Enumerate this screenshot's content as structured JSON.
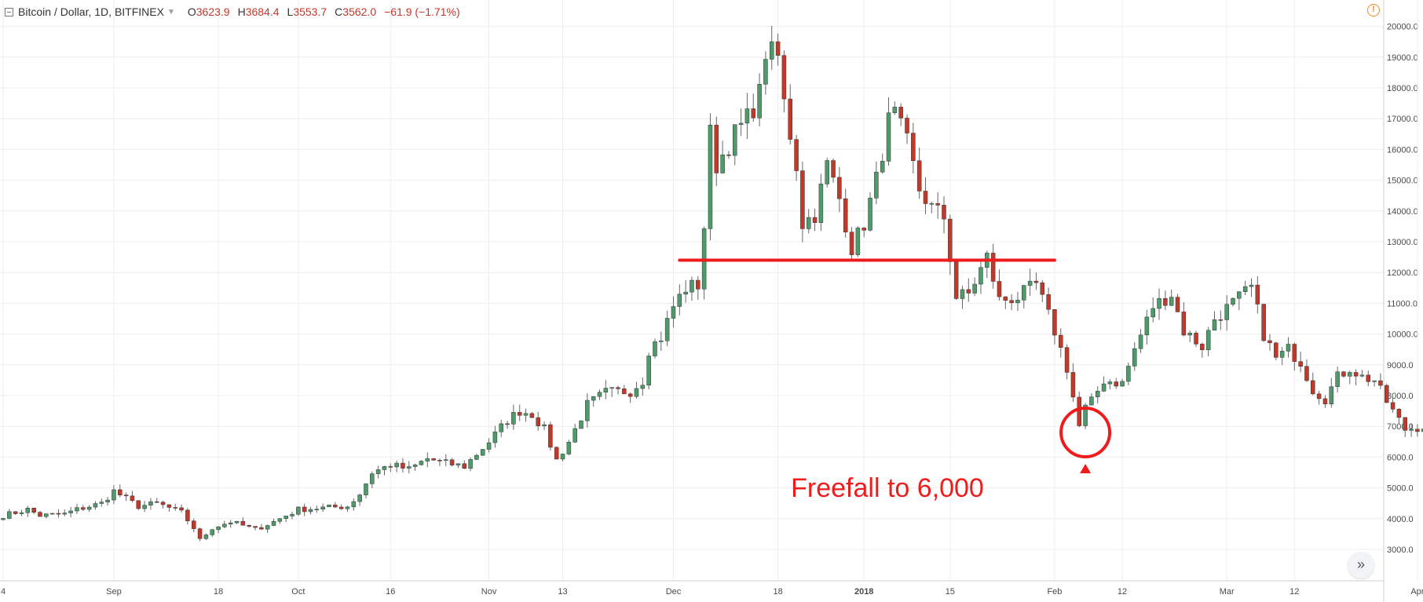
{
  "legend": {
    "symbol": "Bitcoin / Dollar, 1D, BITFINEX",
    "open_key": "O",
    "open": "3623.9",
    "high_key": "H",
    "high": "3684.4",
    "low_key": "L",
    "low": "3553.7",
    "close_key": "C",
    "close": "3562.0",
    "change": "−61.9 (−1.71%)"
  },
  "icons": {
    "alert": "alert-circle-icon",
    "scroll": "double-chevron-right-icon"
  },
  "colors": {
    "up": "#4f9a6b",
    "down": "#c0392b",
    "wick": "#666666",
    "annotation": "#ee1c1c",
    "grid": "#eeeeee",
    "axis_text": "#4a4a4a",
    "background": "#ffffff"
  },
  "annotation": {
    "text": "Freefall to 6,000",
    "support_level": 12400,
    "support_from": "2017-12-02",
    "support_to": "2018-02-01",
    "circled_date": "2018-02-06",
    "circled_price": 6800
  },
  "chart_data": {
    "type": "candlestick",
    "title": "Bitcoin / Dollar, 1D, BITFINEX",
    "y_ticks": [
      "3000.0",
      "4000.0",
      "5000.0",
      "6000.0",
      "7000.0",
      "8000.0",
      "9000.0",
      "10000.0",
      "11000.0",
      "12000.0",
      "13000.0",
      "14000.0",
      "15000.0",
      "16000.0",
      "17000.0",
      "18000.0",
      "19000.0",
      "20000.0"
    ],
    "x_ticks": [
      {
        "date": "2017-08-14",
        "label": "4"
      },
      {
        "date": "2017-09-01",
        "label": "Sep"
      },
      {
        "date": "2017-09-18",
        "label": "18"
      },
      {
        "date": "2017-10-01",
        "label": "Oct"
      },
      {
        "date": "2017-10-16",
        "label": "16"
      },
      {
        "date": "2017-11-01",
        "label": "Nov"
      },
      {
        "date": "2017-11-13",
        "label": "13"
      },
      {
        "date": "2017-12-01",
        "label": "Dec"
      },
      {
        "date": "2017-12-18",
        "label": "18"
      },
      {
        "date": "2018-01-01",
        "label": "2018",
        "bold": true
      },
      {
        "date": "2018-01-15",
        "label": "15"
      },
      {
        "date": "2018-02-01",
        "label": "Feb"
      },
      {
        "date": "2018-02-12",
        "label": "12"
      },
      {
        "date": "2018-03-01",
        "label": "Mar"
      },
      {
        "date": "2018-03-12",
        "label": "12"
      },
      {
        "date": "2018-04-01",
        "label": "Apr"
      }
    ],
    "ylim": [
      2600,
      20400
    ],
    "xlim": [
      "2017-08-14",
      "2018-04-07"
    ],
    "start_date": "2017-08-14",
    "grid": true,
    "anchors": [
      [
        "2017-08-14",
        4100
      ],
      [
        "2017-08-16",
        4200
      ],
      [
        "2017-08-18",
        4300
      ],
      [
        "2017-08-20",
        4100
      ],
      [
        "2017-08-24",
        4150
      ],
      [
        "2017-08-26",
        4300
      ],
      [
        "2017-08-30",
        4500
      ],
      [
        "2017-09-01",
        4900
      ],
      [
        "2017-09-03",
        4650
      ],
      [
        "2017-09-05",
        4400
      ],
      [
        "2017-09-08",
        4500
      ],
      [
        "2017-09-12",
        4200
      ],
      [
        "2017-09-14",
        3700
      ],
      [
        "2017-09-15",
        3300
      ],
      [
        "2017-09-17",
        3700
      ],
      [
        "2017-09-20",
        3900
      ],
      [
        "2017-09-24",
        3650
      ],
      [
        "2017-09-27",
        3900
      ],
      [
        "2017-10-01",
        4300
      ],
      [
        "2017-10-05",
        4350
      ],
      [
        "2017-10-09",
        4400
      ],
      [
        "2017-10-11",
        4800
      ],
      [
        "2017-10-13",
        5500
      ],
      [
        "2017-10-16",
        5750
      ],
      [
        "2017-10-19",
        5600
      ],
      [
        "2017-10-22",
        5950
      ],
      [
        "2017-10-25",
        5800
      ],
      [
        "2017-10-28",
        5700
      ],
      [
        "2017-11-01",
        6500
      ],
      [
        "2017-11-04",
        7200
      ],
      [
        "2017-11-06",
        7500
      ],
      [
        "2017-11-08",
        7400
      ],
      [
        "2017-11-10",
        6900
      ],
      [
        "2017-11-12",
        5900
      ],
      [
        "2017-11-14",
        6500
      ],
      [
        "2017-11-17",
        7700
      ],
      [
        "2017-11-20",
        8100
      ],
      [
        "2017-11-24",
        8150
      ],
      [
        "2017-11-26",
        8500
      ],
      [
        "2017-11-27",
        9500
      ],
      [
        "2017-11-29",
        9900
      ],
      [
        "2017-12-01",
        10900
      ],
      [
        "2017-12-03",
        11500
      ],
      [
        "2017-12-05",
        11600
      ],
      [
        "2017-12-06",
        13500
      ],
      [
        "2017-12-07",
        16500
      ],
      [
        "2017-12-08",
        15500
      ],
      [
        "2017-12-11",
        16500
      ],
      [
        "2017-12-13",
        17000
      ],
      [
        "2017-12-15",
        17800
      ],
      [
        "2017-12-16",
        19200
      ],
      [
        "2017-12-18",
        19000
      ],
      [
        "2017-12-19",
        17500
      ],
      [
        "2017-12-20",
        16500
      ],
      [
        "2017-12-21",
        15500
      ],
      [
        "2017-12-22",
        13600
      ],
      [
        "2017-12-24",
        13900
      ],
      [
        "2017-12-26",
        15500
      ],
      [
        "2017-12-28",
        14400
      ],
      [
        "2017-12-30",
        12800
      ],
      [
        "2018-01-01",
        13600
      ],
      [
        "2018-01-03",
        15000
      ],
      [
        "2018-01-05",
        16900
      ],
      [
        "2018-01-06",
        17100
      ],
      [
        "2018-01-08",
        16200
      ],
      [
        "2018-01-10",
        14700
      ],
      [
        "2018-01-12",
        14100
      ],
      [
        "2018-01-14",
        13800
      ],
      [
        "2018-01-16",
        11200
      ],
      [
        "2018-01-18",
        11300
      ],
      [
        "2018-01-21",
        12500
      ],
      [
        "2018-01-23",
        11100
      ],
      [
        "2018-01-26",
        11200
      ],
      [
        "2018-01-29",
        11600
      ],
      [
        "2018-02-01",
        10100
      ],
      [
        "2018-02-03",
        8900
      ],
      [
        "2018-02-05",
        7000
      ],
      [
        "2018-02-06",
        7600
      ],
      [
        "2018-02-07",
        7800
      ],
      [
        "2018-02-09",
        8500
      ],
      [
        "2018-02-12",
        8400
      ],
      [
        "2018-02-14",
        9500
      ],
      [
        "2018-02-17",
        10900
      ],
      [
        "2018-02-20",
        11300
      ],
      [
        "2018-02-22",
        10100
      ],
      [
        "2018-02-25",
        9600
      ],
      [
        "2018-02-27",
        10500
      ],
      [
        "2018-03-02",
        11000
      ],
      [
        "2018-03-05",
        11500
      ],
      [
        "2018-03-07",
        10000
      ],
      [
        "2018-03-09",
        9200
      ],
      [
        "2018-03-11",
        9500
      ],
      [
        "2018-03-13",
        9100
      ],
      [
        "2018-03-15",
        8200
      ],
      [
        "2018-03-17",
        7900
      ],
      [
        "2018-03-19",
        8600
      ],
      [
        "2018-03-21",
        8900
      ],
      [
        "2018-03-23",
        8600
      ],
      [
        "2018-03-25",
        8500
      ],
      [
        "2018-03-27",
        7800
      ],
      [
        "2018-03-30",
        6900
      ],
      [
        "2018-04-02",
        7000
      ],
      [
        "2018-04-04",
        7000
      ],
      [
        "2018-04-05",
        6800
      ],
      [
        "2018-04-07",
        7000
      ]
    ]
  }
}
